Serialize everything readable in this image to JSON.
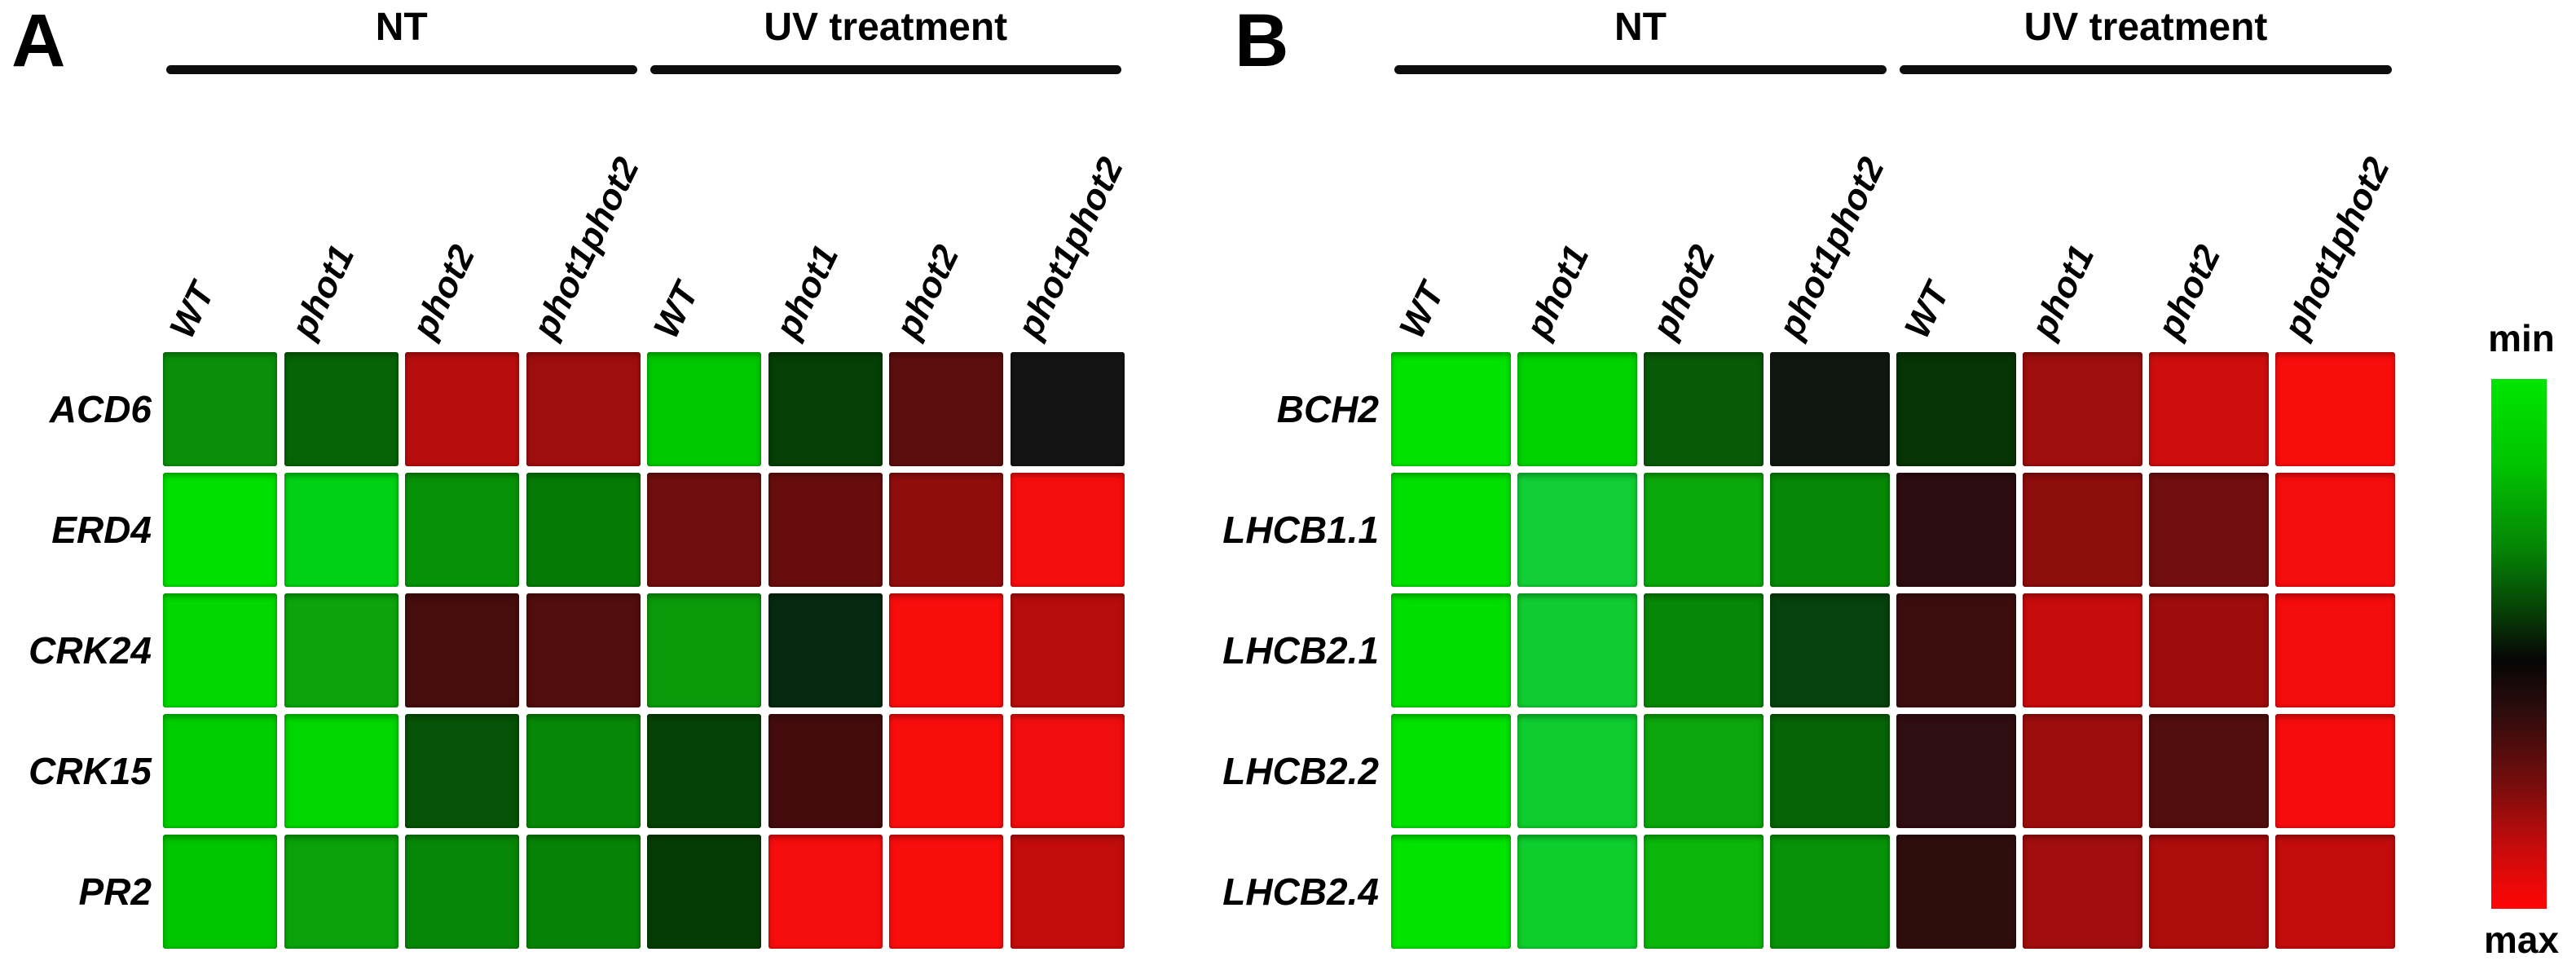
{
  "colorbar": {
    "min_label": "min",
    "max_label": "max",
    "top_color": "#00e600",
    "mid_color": "#000000",
    "bottom_color": "#ff0606"
  },
  "chart_data": [
    {
      "type": "heatmap",
      "panel": "A",
      "condition_groups": [
        {
          "label": "NT",
          "columns": [
            0,
            1,
            2,
            3
          ]
        },
        {
          "label": "UV treatment",
          "columns": [
            4,
            5,
            6,
            7
          ]
        }
      ],
      "columns": [
        "WT",
        "phot1",
        "phot2",
        "phot1phot2",
        "WT",
        "phot1",
        "phot2",
        "phot1phot2"
      ],
      "rows": [
        "ACD6",
        "ERD4",
        "CRK24",
        "CRK15",
        "PR2"
      ],
      "cell_colors": [
        [
          "#0a8f0a",
          "#066306",
          "#b80d0d",
          "#9f0e0e",
          "#00c800",
          "#053f05",
          "#5c0e0e",
          "#141414"
        ],
        [
          "#00e000",
          "#00d114",
          "#069206",
          "#057a05",
          "#700e0e",
          "#680d0d",
          "#900d0d",
          "#f60d0d"
        ],
        [
          "#00d800",
          "#0ba50b",
          "#470c0c",
          "#520d0d",
          "#0a9a0a",
          "#06290f",
          "#f80d0d",
          "#b70c0c"
        ],
        [
          "#00ce00",
          "#00d600",
          "#065206",
          "#068706",
          "#054205",
          "#440c0c",
          "#f80d0d",
          "#ef0d0d"
        ],
        [
          "#00c600",
          "#0aa20a",
          "#078607",
          "#068306",
          "#053c05",
          "#f60d0d",
          "#f80d0d",
          "#c20c0c"
        ]
      ],
      "scale": {
        "min_label": "min",
        "min_color": "green",
        "max_label": "max",
        "max_color": "red"
      }
    },
    {
      "type": "heatmap",
      "panel": "B",
      "condition_groups": [
        {
          "label": "NT",
          "columns": [
            0,
            1,
            2,
            3
          ]
        },
        {
          "label": "UV treatment",
          "columns": [
            4,
            5,
            6,
            7
          ]
        }
      ],
      "columns": [
        "WT",
        "phot1",
        "phot2",
        "phot1phot2",
        "WT",
        "phot1",
        "phot2",
        "phot1phot2"
      ],
      "rows": [
        "BCH2",
        "LHCB1.1",
        "LHCB2.1",
        "LHCB2.2",
        "LHCB2.4"
      ],
      "cell_colors": [
        [
          "#00e200",
          "#00d200",
          "#085a08",
          "#101710",
          "#053405",
          "#9e0e0e",
          "#ce0d0d",
          "#f80d0d"
        ],
        [
          "#00e000",
          "#12ce36",
          "#0ba80b",
          "#068706",
          "#2c0d10",
          "#8e0d0d",
          "#720e0e",
          "#f60d0d"
        ],
        [
          "#00de00",
          "#10cc30",
          "#068706",
          "#06420c",
          "#3c0d0d",
          "#c60c0c",
          "#9e0c0c",
          "#f40c0c"
        ],
        [
          "#00e200",
          "#0ecc2e",
          "#0ba60b",
          "#066306",
          "#2f0d10",
          "#9e0d0d",
          "#520e0e",
          "#f60c0c"
        ],
        [
          "#00e400",
          "#0dce2d",
          "#0bb60b",
          "#079207",
          "#300d0d",
          "#a20d0d",
          "#ac0c0c",
          "#c20c0c"
        ]
      ],
      "scale": {
        "min_label": "min",
        "min_color": "green",
        "max_label": "max",
        "max_color": "red"
      }
    }
  ]
}
